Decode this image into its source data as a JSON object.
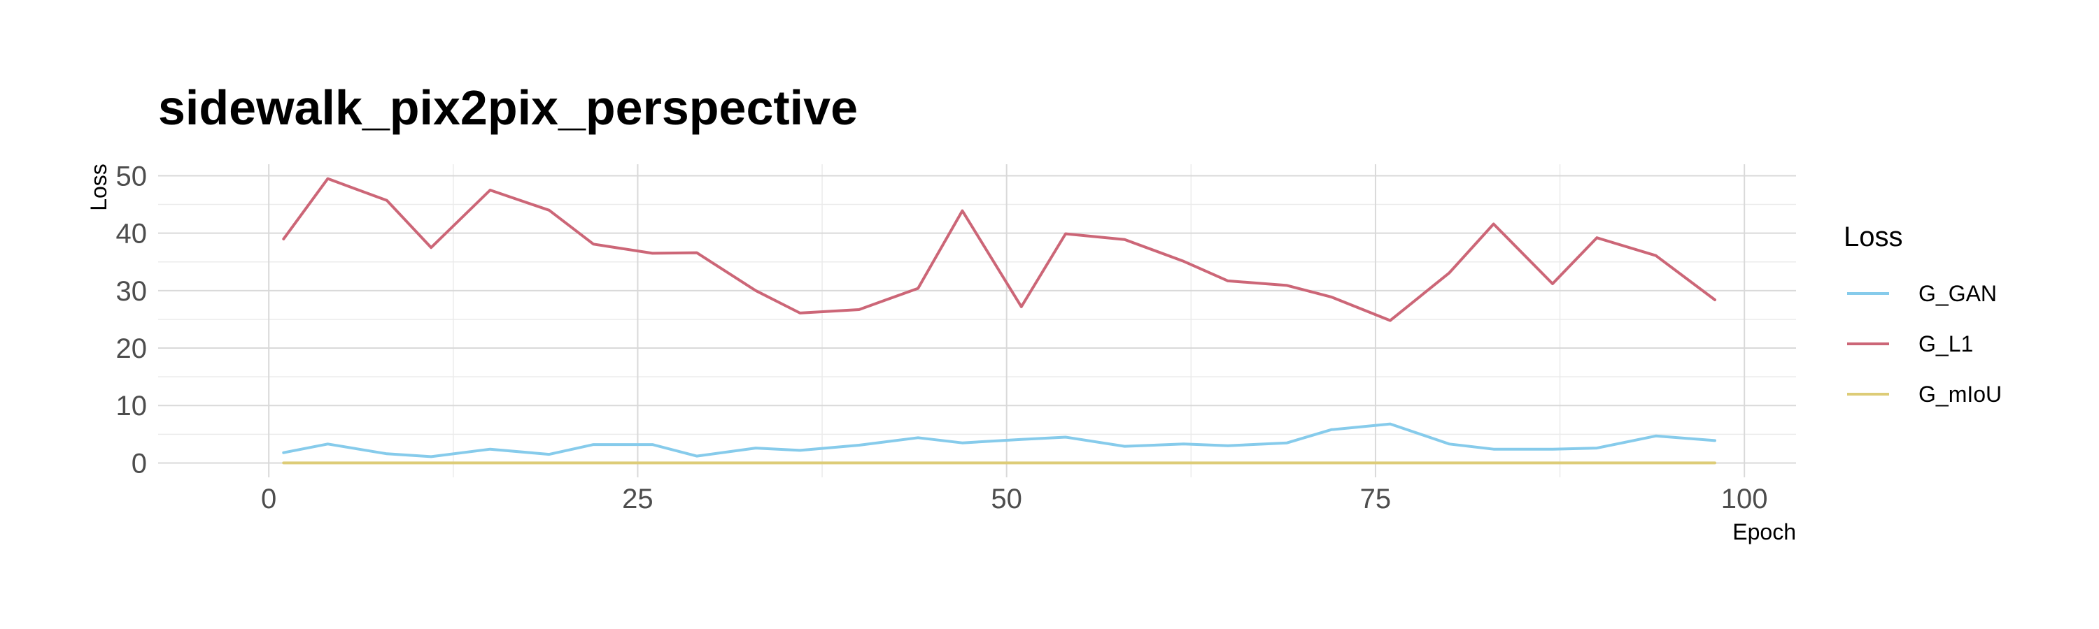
{
  "chart_data": {
    "type": "line",
    "title": "sidewalk_pix2pix_perspective",
    "xlabel": "Epoch",
    "ylabel": "Loss",
    "xlim": [
      -7.5,
      103.5
    ],
    "ylim": [
      -2.5,
      52
    ],
    "x_ticks": [
      0,
      25,
      50,
      75,
      100
    ],
    "y_ticks": [
      0,
      10,
      20,
      30,
      40,
      50
    ],
    "x_tick_labels": [
      "0",
      "25",
      "50",
      "75",
      "100"
    ],
    "y_tick_labels": [
      "0",
      "10",
      "20",
      "30",
      "40",
      "50"
    ],
    "grid": true,
    "legend": {
      "title": "Loss",
      "placement": "right"
    },
    "x": [
      1,
      4,
      8,
      11,
      15,
      19,
      22,
      26,
      29,
      33,
      36,
      40,
      44,
      47,
      51,
      54,
      58,
      62,
      65,
      69,
      72,
      76,
      80,
      83,
      87,
      90,
      94,
      98
    ],
    "series": [
      {
        "name": "G_GAN",
        "color": "#86cbeb",
        "values": [
          1.8,
          3.3,
          1.6,
          1.1,
          2.4,
          1.5,
          3.2,
          3.2,
          1.2,
          2.6,
          2.2,
          3.1,
          4.4,
          3.5,
          4.1,
          4.5,
          2.9,
          3.3,
          3.0,
          3.5,
          5.8,
          6.8,
          3.3,
          2.4,
          2.4,
          2.6,
          4.7,
          3.9
        ]
      },
      {
        "name": "G_L1",
        "color": "#cc6677",
        "values": [
          39.0,
          49.5,
          45.7,
          37.5,
          47.5,
          44.0,
          38.1,
          36.5,
          36.6,
          30.0,
          26.1,
          26.7,
          30.4,
          43.9,
          27.2,
          39.9,
          38.9,
          35.1,
          31.7,
          30.9,
          28.9,
          24.8,
          33.1,
          41.6,
          31.2,
          39.2,
          36.1,
          28.4
        ]
      },
      {
        "name": "G_mIoU",
        "color": "#ddcc77",
        "values": [
          0,
          0,
          0,
          0,
          0,
          0,
          0,
          0,
          0,
          0,
          0,
          0,
          0,
          0,
          0,
          0,
          0,
          0,
          0,
          0,
          0,
          0,
          0,
          0,
          0,
          0,
          0,
          0
        ]
      }
    ]
  }
}
